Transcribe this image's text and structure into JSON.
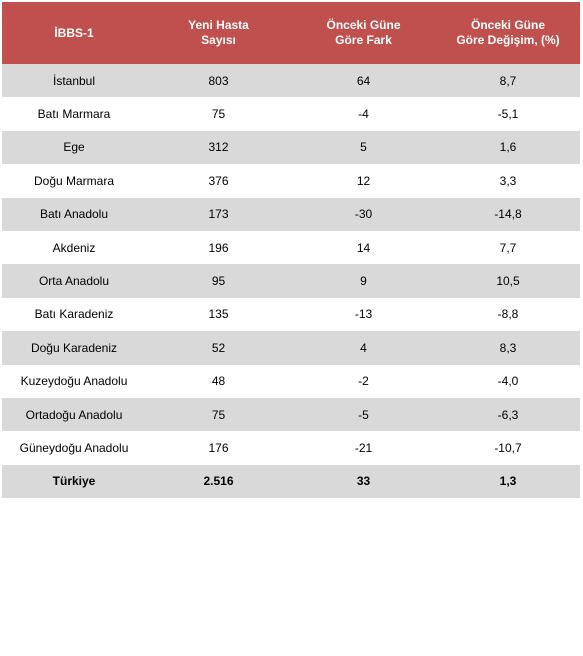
{
  "table": {
    "headers": [
      "İBBS-1",
      "Yeni Hasta Sayısı",
      "Önceki Güne Göre Fark",
      "Önceki Güne Göre Değişim, (%)"
    ],
    "header_lines": [
      [
        "İBBS-1"
      ],
      [
        "Yeni Hasta",
        "Sayısı"
      ],
      [
        "Önceki Güne",
        "Göre Fark"
      ],
      [
        "Önceki Güne",
        "Göre Değişim, (%)"
      ]
    ],
    "rows": [
      [
        "İstanbul",
        "803",
        "64",
        "8,7"
      ],
      [
        "Batı Marmara",
        "75",
        "-4",
        "-5,1"
      ],
      [
        "Ege",
        "312",
        "5",
        "1,6"
      ],
      [
        "Doğu Marmara",
        "376",
        "12",
        "3,3"
      ],
      [
        "Batı Anadolu",
        "173",
        "-30",
        "-14,8"
      ],
      [
        "Akdeniz",
        "196",
        "14",
        "7,7"
      ],
      [
        "Orta Anadolu",
        "95",
        "9",
        "10,5"
      ],
      [
        "Batı Karadeniz",
        "135",
        "-13",
        "-8,8"
      ],
      [
        "Doğu Karadeniz",
        "52",
        "4",
        "8,3"
      ],
      [
        "Kuzeydoğu Anadolu",
        "48",
        "-2",
        "-4,0"
      ],
      [
        "Ortadoğu Anadolu",
        "75",
        "-5",
        "-6,3"
      ],
      [
        "Güneydoğu Anadolu",
        "176",
        "-21",
        "-10,7"
      ],
      [
        "Türkiye",
        "2.516",
        "33",
        "1,3"
      ]
    ]
  },
  "colors": {
    "header_bg": "#c0504d",
    "header_text": "#ffffff",
    "shaded_row": "#d9d9d9"
  }
}
